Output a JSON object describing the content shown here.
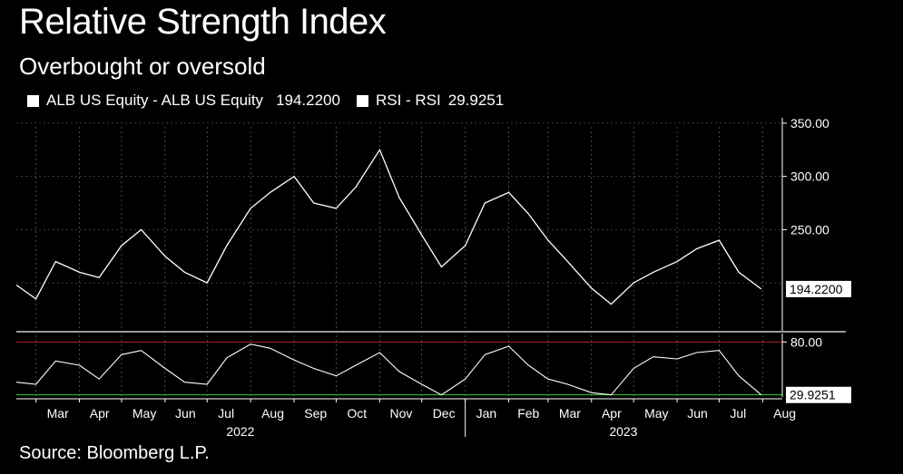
{
  "header": {
    "title": "Relative Strength Index",
    "subtitle": "Overbought or oversold"
  },
  "legend": {
    "price_label": "ALB US Equity - ALB US Equity",
    "price_value": "194.2200",
    "rsi_label": "RSI - RSI",
    "rsi_value": "29.9251"
  },
  "source": "Source: Bloomberg L.P.",
  "colors": {
    "background": "#000000",
    "price_line": "#ffffff",
    "overbought_line": "#b22222",
    "oversold_line": "#2ecc40",
    "overbought_fill": "#e07a7a",
    "grid": "#7a7a7a"
  },
  "chart_data": [
    {
      "type": "line",
      "series": [
        {
          "name": "ALB US Equity",
          "x": [
            "2022-02-15",
            "2022-03-01",
            "2022-03-15",
            "2022-04-01",
            "2022-04-15",
            "2022-05-01",
            "2022-05-15",
            "2022-06-01",
            "2022-06-15",
            "2022-07-01",
            "2022-07-15",
            "2022-08-01",
            "2022-08-15",
            "2022-09-01",
            "2022-09-15",
            "2022-10-01",
            "2022-10-15",
            "2022-11-01",
            "2022-11-15",
            "2022-12-01",
            "2022-12-15",
            "2023-01-01",
            "2023-01-15",
            "2023-02-01",
            "2023-02-15",
            "2023-03-01",
            "2023-03-15",
            "2023-04-01",
            "2023-04-15",
            "2023-05-01",
            "2023-05-15",
            "2023-06-01",
            "2023-06-15",
            "2023-07-01",
            "2023-07-15",
            "2023-07-31"
          ],
          "values": [
            198,
            185,
            220,
            210,
            205,
            235,
            250,
            225,
            210,
            200,
            235,
            270,
            285,
            300,
            275,
            270,
            290,
            325,
            280,
            245,
            215,
            235,
            275,
            285,
            265,
            240,
            220,
            195,
            180,
            200,
            210,
            220,
            232,
            240,
            210,
            194.22
          ]
        }
      ],
      "yticks": [
        "350.00",
        "300.00",
        "250.00"
      ],
      "ylim": [
        155,
        355
      ],
      "last_value_label": "194.2200"
    },
    {
      "type": "line",
      "series": [
        {
          "name": "RSI",
          "x": [
            "2022-02-15",
            "2022-03-01",
            "2022-03-15",
            "2022-04-01",
            "2022-04-15",
            "2022-05-01",
            "2022-05-15",
            "2022-06-01",
            "2022-06-15",
            "2022-07-01",
            "2022-07-15",
            "2022-08-01",
            "2022-08-15",
            "2022-09-01",
            "2022-09-15",
            "2022-10-01",
            "2022-10-15",
            "2022-11-01",
            "2022-11-15",
            "2022-12-01",
            "2022-12-15",
            "2023-01-01",
            "2023-01-15",
            "2023-02-01",
            "2023-02-15",
            "2023-03-01",
            "2023-03-15",
            "2023-04-01",
            "2023-04-15",
            "2023-05-01",
            "2023-05-15",
            "2023-06-01",
            "2023-06-15",
            "2023-07-01",
            "2023-07-15",
            "2023-07-31"
          ],
          "values": [
            42,
            40,
            62,
            58,
            45,
            68,
            72,
            55,
            42,
            40,
            65,
            78,
            74,
            63,
            55,
            48,
            58,
            70,
            52,
            40,
            30,
            45,
            68,
            76,
            58,
            45,
            40,
            32,
            30,
            55,
            66,
            64,
            70,
            72,
            48,
            29.93
          ]
        }
      ],
      "yticks": [
        "80.00"
      ],
      "ylim": [
        28,
        88
      ],
      "overbought": 80,
      "oversold": 30,
      "last_value_label": "29.9251"
    }
  ],
  "x_axis": {
    "months": [
      "Mar",
      "Apr",
      "May",
      "Jun",
      "Jul",
      "Aug",
      "Sep",
      "Oct",
      "Nov",
      "Dec",
      "Jan",
      "Feb",
      "Mar",
      "Apr",
      "May",
      "Jun",
      "Jul",
      "Aug"
    ],
    "years": [
      "2022",
      "2023"
    ]
  }
}
